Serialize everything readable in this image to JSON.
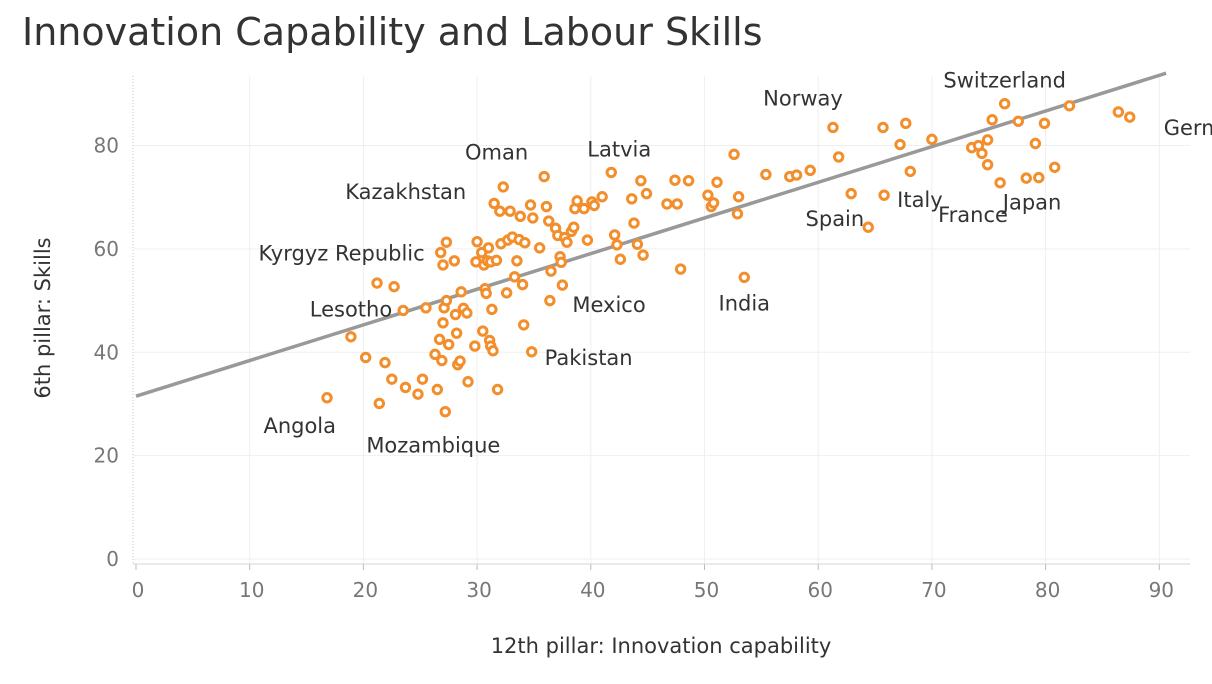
{
  "chart_data": {
    "type": "scatter",
    "title": "Innovation Capability and Labour Skills",
    "xlabel": "12th pillar: Innovation capability",
    "ylabel": "6th pillar: Skills",
    "xlim": [
      0,
      93
    ],
    "ylim": [
      -4,
      95
    ],
    "x_ticks": [
      0,
      10,
      20,
      30,
      40,
      50,
      60,
      70,
      80,
      90
    ],
    "y_ticks": [
      0,
      20,
      40,
      60,
      80
    ],
    "grid": true,
    "marker_color": "#F28E2B",
    "trendline_color": "#999999",
    "trendline": [
      [
        0,
        31.5
      ],
      [
        90.6,
        94
      ]
    ],
    "points": [
      [
        16.8,
        31.2
      ],
      [
        18.9,
        43
      ],
      [
        20.2,
        39
      ],
      [
        21.2,
        53.4
      ],
      [
        21.4,
        30.1
      ],
      [
        21.9,
        38
      ],
      [
        22.5,
        34.8
      ],
      [
        22.7,
        52.7
      ],
      [
        23.5,
        48.1
      ],
      [
        23.7,
        33.2
      ],
      [
        24.8,
        31.9
      ],
      [
        25.2,
        34.8
      ],
      [
        25.5,
        48.6
      ],
      [
        26.3,
        39.6
      ],
      [
        26.5,
        32.8
      ],
      [
        26.7,
        42.5
      ],
      [
        26.8,
        59.3
      ],
      [
        26.9,
        38.4
      ],
      [
        27.0,
        56.9
      ],
      [
        27.0,
        45.7
      ],
      [
        27.1,
        48.6
      ],
      [
        27.2,
        28.5
      ],
      [
        27.3,
        61.3
      ],
      [
        27.3,
        50.0
      ],
      [
        27.5,
        41.5
      ],
      [
        28.0,
        57.7
      ],
      [
        28.1,
        47.3
      ],
      [
        28.2,
        43.7
      ],
      [
        28.3,
        37.6
      ],
      [
        28.5,
        38.3
      ],
      [
        28.6,
        51.7
      ],
      [
        28.8,
        48.5
      ],
      [
        29.1,
        47.6
      ],
      [
        29.2,
        34.3
      ],
      [
        29.8,
        41.2
      ],
      [
        29.9,
        57.5
      ],
      [
        30.0,
        61.4
      ],
      [
        30.4,
        59.3
      ],
      [
        30.5,
        44.1
      ],
      [
        30.6,
        56.9
      ],
      [
        30.7,
        52.3
      ],
      [
        30.8,
        51.4
      ],
      [
        30.9,
        57.7
      ],
      [
        31.0,
        60.2
      ],
      [
        31.1,
        42.3
      ],
      [
        31.2,
        41.2
      ],
      [
        31.2,
        57.5
      ],
      [
        31.3,
        48.3
      ],
      [
        31.4,
        40.3
      ],
      [
        31.5,
        68.8
      ],
      [
        31.7,
        57.8
      ],
      [
        31.8,
        32.8
      ],
      [
        32.0,
        67.3
      ],
      [
        32.1,
        61.0
      ],
      [
        32.3,
        72.0
      ],
      [
        32.6,
        51.5
      ],
      [
        32.7,
        61.7
      ],
      [
        32.9,
        67.3
      ],
      [
        33.1,
        62.3
      ],
      [
        33.3,
        54.6
      ],
      [
        33.5,
        57.7
      ],
      [
        33.7,
        61.8
      ],
      [
        33.8,
        66.3
      ],
      [
        34.0,
        53.1
      ],
      [
        34.1,
        45.3
      ],
      [
        34.2,
        61.2
      ],
      [
        34.7,
        68.5
      ],
      [
        34.9,
        66.0
      ],
      [
        34.8,
        40.1
      ],
      [
        35.5,
        60.2
      ],
      [
        35.9,
        74.0
      ],
      [
        36.1,
        68.2
      ],
      [
        36.3,
        65.4
      ],
      [
        36.4,
        50.0
      ],
      [
        36.5,
        55.7
      ],
      [
        36.9,
        64.0
      ],
      [
        37.1,
        62.6
      ],
      [
        37.3,
        58.5
      ],
      [
        37.4,
        57.4
      ],
      [
        37.5,
        53.0
      ],
      [
        37.7,
        62.2
      ],
      [
        37.9,
        61.3
      ],
      [
        38.3,
        63.4
      ],
      [
        38.5,
        64.2
      ],
      [
        38.6,
        67.8
      ],
      [
        38.8,
        69.3
      ],
      [
        39.4,
        67.8
      ],
      [
        39.7,
        61.7
      ],
      [
        40.1,
        69.1
      ],
      [
        40.3,
        68.4
      ],
      [
        41.0,
        70.1
      ],
      [
        41.8,
        74.8
      ],
      [
        42.1,
        62.7
      ],
      [
        42.3,
        60.8
      ],
      [
        42.6,
        58.0
      ],
      [
        43.6,
        69.7
      ],
      [
        43.8,
        65.0
      ],
      [
        44.1,
        60.9
      ],
      [
        44.4,
        73.2
      ],
      [
        44.6,
        58.8
      ],
      [
        44.9,
        70.7
      ],
      [
        46.7,
        68.7
      ],
      [
        47.4,
        73.3
      ],
      [
        47.6,
        68.7
      ],
      [
        47.9,
        56.1
      ],
      [
        48.6,
        73.2
      ],
      [
        50.3,
        70.4
      ],
      [
        50.6,
        68.2
      ],
      [
        50.8,
        68.9
      ],
      [
        51.1,
        72.9
      ],
      [
        52.6,
        78.3
      ],
      [
        53.0,
        70.1
      ],
      [
        52.9,
        66.8
      ],
      [
        53.5,
        54.5
      ],
      [
        55.4,
        74.4
      ],
      [
        57.5,
        74.0
      ],
      [
        58.1,
        74.3
      ],
      [
        59.3,
        75.2
      ],
      [
        61.3,
        83.5
      ],
      [
        61.8,
        77.8
      ],
      [
        62.9,
        70.7
      ],
      [
        64.4,
        64.2
      ],
      [
        65.7,
        83.5
      ],
      [
        65.8,
        70.4
      ],
      [
        67.2,
        80.2
      ],
      [
        67.7,
        84.3
      ],
      [
        68.1,
        75.0
      ],
      [
        70.0,
        81.2
      ],
      [
        73.5,
        79.6
      ],
      [
        74.1,
        80.0
      ],
      [
        74.4,
        78.5
      ],
      [
        74.9,
        81.1
      ],
      [
        74.9,
        76.3
      ],
      [
        75.3,
        85.0
      ],
      [
        76.0,
        72.8
      ],
      [
        76.4,
        88.1
      ],
      [
        77.6,
        84.7
      ],
      [
        78.3,
        73.7
      ],
      [
        79.1,
        80.4
      ],
      [
        79.4,
        73.8
      ],
      [
        79.9,
        84.3
      ],
      [
        80.8,
        75.8
      ],
      [
        82.1,
        87.7
      ],
      [
        86.4,
        86.5
      ],
      [
        87.4,
        85.5
      ]
    ],
    "annotations": [
      {
        "text": "Switzerland",
        "x": 76.4,
        "y": 88.1
      },
      {
        "text": "Norway",
        "x": 61.3,
        "y": 83.5
      },
      {
        "text": "Germany",
        "x": 87.4,
        "y": 85.5
      },
      {
        "text": "Latvia",
        "x": 41.8,
        "y": 74.8
      },
      {
        "text": "Oman",
        "x": 35.9,
        "y": 74.0
      },
      {
        "text": "Kazakhstan",
        "x": 32.3,
        "y": 72.0
      },
      {
        "text": "Italy",
        "x": 65.8,
        "y": 70.4
      },
      {
        "text": "Spain",
        "x": 64.4,
        "y": 64.2
      },
      {
        "text": "France",
        "x": 76.0,
        "y": 72.8
      },
      {
        "text": "Japan",
        "x": 79.4,
        "y": 73.8
      },
      {
        "text": "Kyrgyz Republic",
        "x": 26.8,
        "y": 59.3
      },
      {
        "text": "Mexico",
        "x": 37.5,
        "y": 53.0
      },
      {
        "text": "India",
        "x": 53.5,
        "y": 54.5
      },
      {
        "text": "Lesotho",
        "x": 23.5,
        "y": 48.1
      },
      {
        "text": "Pakistan",
        "x": 34.8,
        "y": 40.1
      },
      {
        "text": "Angola",
        "x": 16.8,
        "y": 31.2
      },
      {
        "text": "Mozambique",
        "x": 21.4,
        "y": 30.1
      }
    ]
  }
}
